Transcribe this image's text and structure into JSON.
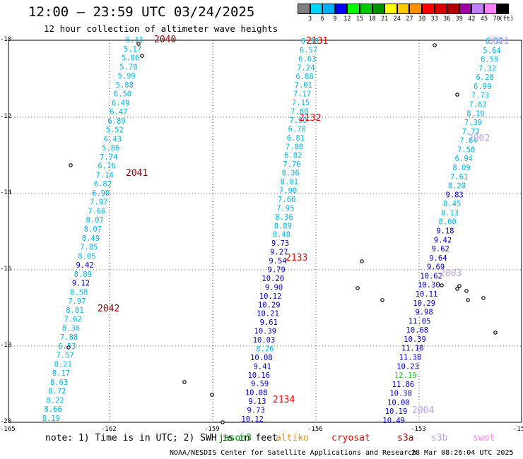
{
  "header": {
    "title": "12:00 – 23:59 UTC 03/24/2025",
    "subtitle": "12 hour collection of altimeter wave heights"
  },
  "colorbar": {
    "unit": "(ft)",
    "levels": [
      "3",
      "6",
      "9",
      "12",
      "15",
      "18",
      "21",
      "24",
      "27",
      "30",
      "33",
      "36",
      "39",
      "42",
      "45",
      "70"
    ],
    "colors": [
      "#808080",
      "#00d8ff",
      "#00b0ff",
      "#0000ff",
      "#00ff00",
      "#00c800",
      "#009000",
      "#ffff00",
      "#ffc800",
      "#ff9000",
      "#ff0000",
      "#d80000",
      "#b00000",
      "#a000a0",
      "#c080ff",
      "#ff80ff",
      "#000000"
    ]
  },
  "axes": {
    "lon_labels": [
      "-165",
      "-162",
      "-159",
      "-156",
      "-153",
      "-15"
    ],
    "lat_labels": [
      "-10",
      "-12",
      "-14",
      "-16",
      "-18",
      "-20"
    ]
  },
  "note": {
    "prefix": "note: 1) Time is in UTC; 2) SWH is in feet",
    "sats": [
      {
        "name": "jason3",
        "color": "#009000"
      },
      {
        "name": "altiko",
        "color": "#ff9000"
      },
      {
        "name": "cryosat",
        "color": "#ff0000"
      },
      {
        "name": "s3a",
        "color": "#b00000"
      },
      {
        "name": "s3b",
        "color": "#c0a0ff"
      },
      {
        "name": "swot",
        "color": "#ff80ff"
      }
    ]
  },
  "footer": {
    "left": "NOAA/NESDIS Center for Satellite Applications and Research",
    "right": "28 Mar 08:26:04 UTC 2025"
  },
  "tracks": [
    {
      "name": "track-1",
      "times": [
        {
          "t": "2040",
          "color": "#8b0000"
        },
        {
          "t": "2041",
          "color": "#8b0000"
        },
        {
          "t": "2042",
          "color": "#8b0000"
        }
      ],
      "values": [
        {
          "v": "6.11",
          "c": "#00b8e8"
        },
        {
          "v": "5.17",
          "c": "#00b8e8"
        },
        {
          "v": "5.86",
          "c": "#00b8e8"
        },
        {
          "v": "5.78",
          "c": "#00b8e8"
        },
        {
          "v": "5.99",
          "c": "#00b8e8"
        },
        {
          "v": "5.88",
          "c": "#00b8e8"
        },
        {
          "v": "6.50",
          "c": "#00b8e8"
        },
        {
          "v": "6.49",
          "c": "#00b8e8"
        },
        {
          "v": "6.47",
          "c": "#00b8e8"
        },
        {
          "v": "6.89",
          "c": "#00b8e8"
        },
        {
          "v": "5.52",
          "c": "#00b8e8"
        },
        {
          "v": "6.43",
          "c": "#00b8e8"
        },
        {
          "v": "5.86",
          "c": "#00b8e8"
        },
        {
          "v": "7.74",
          "c": "#00b8e8"
        },
        {
          "v": "6.76",
          "c": "#00b8e8"
        },
        {
          "v": "7.14",
          "c": "#00b8e8"
        },
        {
          "v": "6.82",
          "c": "#00b8e8"
        },
        {
          "v": "6.90",
          "c": "#00b8e8"
        },
        {
          "v": "7.97",
          "c": "#00b8e8"
        },
        {
          "v": "7.66",
          "c": "#00b8e8"
        },
        {
          "v": "8.07",
          "c": "#00b8e8"
        },
        {
          "v": "8.07",
          "c": "#00b8e8"
        },
        {
          "v": "8.49",
          "c": "#00b8e8"
        },
        {
          "v": "7.85",
          "c": "#00b8e8"
        },
        {
          "v": "8.05",
          "c": "#00b8e8"
        },
        {
          "v": "9.42",
          "c": "#0000d0"
        },
        {
          "v": "8.89",
          "c": "#00b8e8"
        },
        {
          "v": "9.12",
          "c": "#0000d0"
        },
        {
          "v": "8.58",
          "c": "#00b8e8"
        },
        {
          "v": "7.97",
          "c": "#00b8e8"
        },
        {
          "v": "8.01",
          "c": "#00b8e8"
        },
        {
          "v": "7.62",
          "c": "#00b8e8"
        },
        {
          "v": "8.36",
          "c": "#00b8e8"
        },
        {
          "v": "7.88",
          "c": "#00b8e8"
        },
        {
          "v": "6.53",
          "c": "#00b8e8"
        },
        {
          "v": "7.57",
          "c": "#00b8e8"
        },
        {
          "v": "8.21",
          "c": "#00b8e8"
        },
        {
          "v": "8.17",
          "c": "#00b8e8"
        },
        {
          "v": "8.63",
          "c": "#00b8e8"
        },
        {
          "v": "8.72",
          "c": "#00b8e8"
        },
        {
          "v": "8.22",
          "c": "#00b8e8"
        },
        {
          "v": "8.66",
          "c": "#00b8e8"
        },
        {
          "v": "8.19",
          "c": "#00b8e8"
        }
      ]
    },
    {
      "name": "track-2",
      "times": [
        {
          "t": "2131",
          "color": "#ff0000"
        },
        {
          "t": "2132",
          "color": "#ff0000"
        },
        {
          "t": "2133",
          "color": "#ff0000"
        },
        {
          "t": "2134",
          "color": "#ff0000"
        }
      ],
      "values": [
        {
          "v": "6.38",
          "c": "#00b8e8"
        },
        {
          "v": "6.57",
          "c": "#00b8e8"
        },
        {
          "v": "6.63",
          "c": "#00b8e8"
        },
        {
          "v": "7.24",
          "c": "#00b8e8"
        },
        {
          "v": "6.88",
          "c": "#00b8e8"
        },
        {
          "v": "7.01",
          "c": "#00b8e8"
        },
        {
          "v": "7.17",
          "c": "#00b8e8"
        },
        {
          "v": "7.15",
          "c": "#00b8e8"
        },
        {
          "v": "7.60",
          "c": "#00b8e8"
        },
        {
          "v": "7.90",
          "c": "#00b8e8"
        },
        {
          "v": "6.70",
          "c": "#00b8e8"
        },
        {
          "v": "6.81",
          "c": "#00b8e8"
        },
        {
          "v": "7.00",
          "c": "#00b8e8"
        },
        {
          "v": "6.82",
          "c": "#00b8e8"
        },
        {
          "v": "7.76",
          "c": "#00b8e8"
        },
        {
          "v": "8.36",
          "c": "#00b8e8"
        },
        {
          "v": "8.01",
          "c": "#00b8e8"
        },
        {
          "v": "7.90",
          "c": "#00b8e8"
        },
        {
          "v": "7.66",
          "c": "#00b8e8"
        },
        {
          "v": "7.95",
          "c": "#00b8e8"
        },
        {
          "v": "8.36",
          "c": "#00b8e8"
        },
        {
          "v": "8.89",
          "c": "#00b8e8"
        },
        {
          "v": "8.48",
          "c": "#00b8e8"
        },
        {
          "v": "9.73",
          "c": "#0000d0"
        },
        {
          "v": "9.27",
          "c": "#0000d0"
        },
        {
          "v": "9.54",
          "c": "#0000d0"
        },
        {
          "v": "9.79",
          "c": "#0000d0"
        },
        {
          "v": "10.20",
          "c": "#0000d0"
        },
        {
          "v": "9.90",
          "c": "#0000d0"
        },
        {
          "v": "10.12",
          "c": "#0000d0"
        },
        {
          "v": "10.29",
          "c": "#0000d0"
        },
        {
          "v": "10.21",
          "c": "#0000d0"
        },
        {
          "v": "9.61",
          "c": "#0000d0"
        },
        {
          "v": "10.39",
          "c": "#0000d0"
        },
        {
          "v": "10.03",
          "c": "#0000d0"
        },
        {
          "v": "8.26",
          "c": "#00b8e8"
        },
        {
          "v": "10.08",
          "c": "#0000d0"
        },
        {
          "v": "9.41",
          "c": "#0000d0"
        },
        {
          "v": "10.16",
          "c": "#0000d0"
        },
        {
          "v": "9.59",
          "c": "#0000d0"
        },
        {
          "v": "10.08",
          "c": "#0000d0"
        },
        {
          "v": "9.13",
          "c": "#0000d0"
        },
        {
          "v": "9.73",
          "c": "#0000d0"
        },
        {
          "v": "10.12",
          "c": "#0000d0"
        }
      ]
    },
    {
      "name": "track-3",
      "times": [
        {
          "t": "2001",
          "color": "#c0a0ff"
        },
        {
          "t": "2002",
          "color": "#c0a0ff"
        },
        {
          "t": "2003",
          "color": "#c0a0ff"
        },
        {
          "t": "2004",
          "color": "#c0a0ff"
        }
      ],
      "values": [
        {
          "v": "6.52",
          "c": "#00b8e8"
        },
        {
          "v": "5.64",
          "c": "#00b8e8"
        },
        {
          "v": "6.59",
          "c": "#00b8e8"
        },
        {
          "v": "7.32",
          "c": "#00b8e8"
        },
        {
          "v": "6.28",
          "c": "#00b8e8"
        },
        {
          "v": "6.99",
          "c": "#00b8e8"
        },
        {
          "v": "7.73",
          "c": "#00b8e8"
        },
        {
          "v": "7.62",
          "c": "#00b8e8"
        },
        {
          "v": "8.19",
          "c": "#00b8e8"
        },
        {
          "v": "7.39",
          "c": "#00b8e8"
        },
        {
          "v": "7.72",
          "c": "#00b8e8"
        },
        {
          "v": "7.84",
          "c": "#00b8e8"
        },
        {
          "v": "7.56",
          "c": "#00b8e8"
        },
        {
          "v": "6.94",
          "c": "#00b8e8"
        },
        {
          "v": "8.09",
          "c": "#00b8e8"
        },
        {
          "v": "7.61",
          "c": "#00b8e8"
        },
        {
          "v": "8.20",
          "c": "#00b8e8"
        },
        {
          "v": "9.83",
          "c": "#0000d0"
        },
        {
          "v": "8.45",
          "c": "#00b8e8"
        },
        {
          "v": "8.13",
          "c": "#00b8e8"
        },
        {
          "v": "8.60",
          "c": "#00b8e8"
        },
        {
          "v": "9.18",
          "c": "#0000d0"
        },
        {
          "v": "9.42",
          "c": "#0000d0"
        },
        {
          "v": "9.62",
          "c": "#0000d0"
        },
        {
          "v": "9.64",
          "c": "#0000d0"
        },
        {
          "v": "9.69",
          "c": "#0000d0"
        },
        {
          "v": "10.62",
          "c": "#0000d0"
        },
        {
          "v": "10.30",
          "c": "#0000d0"
        },
        {
          "v": "10.11",
          "c": "#0000d0"
        },
        {
          "v": "10.29",
          "c": "#0000d0"
        },
        {
          "v": "9.98",
          "c": "#0000d0"
        },
        {
          "v": "11.05",
          "c": "#0000d0"
        },
        {
          "v": "10.68",
          "c": "#0000d0"
        },
        {
          "v": "10.39",
          "c": "#0000d0"
        },
        {
          "v": "11.18",
          "c": "#0000d0"
        },
        {
          "v": "11.38",
          "c": "#0000d0"
        },
        {
          "v": "10.23",
          "c": "#0000d0"
        },
        {
          "v": "12.19",
          "c": "#30d030"
        },
        {
          "v": "11.86",
          "c": "#0000d0"
        },
        {
          "v": "10.38",
          "c": "#0000d0"
        },
        {
          "v": "10.00",
          "c": "#0000d0"
        },
        {
          "v": "10.19",
          "c": "#0000d0"
        },
        {
          "v": "10.49",
          "c": "#0000d0"
        }
      ]
    }
  ]
}
